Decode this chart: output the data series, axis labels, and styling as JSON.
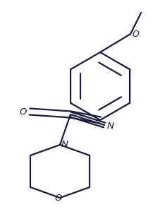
{
  "bg_color": "#ffffff",
  "line_color": "#1a1a3a",
  "line_width": 1.6,
  "figsize": [
    2.24,
    3.1
  ],
  "dpi": 100,
  "xlim": [
    0,
    224
  ],
  "ylim": [
    0,
    310
  ]
}
